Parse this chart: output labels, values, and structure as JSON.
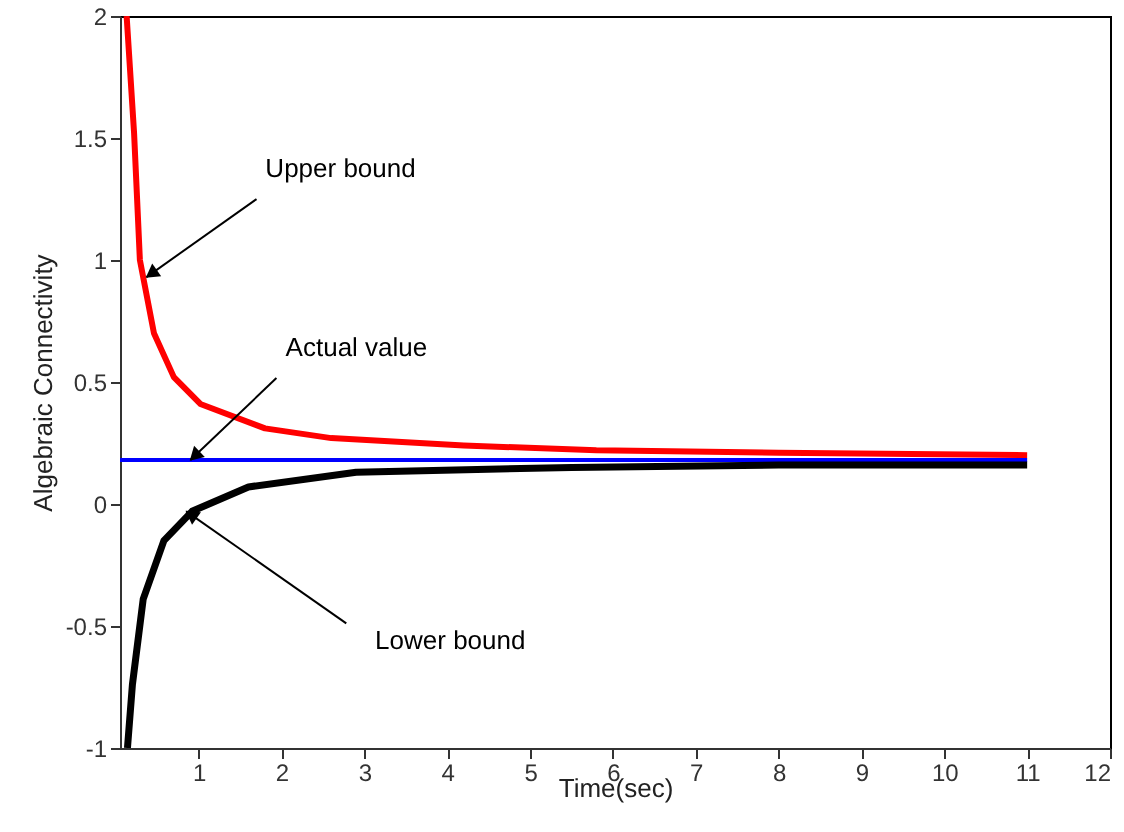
{
  "chart_data": {
    "type": "line",
    "xlabel": "Time(sec)",
    "ylabel": "Algebraic Connectivity",
    "xlim": [
      0.05,
      12
    ],
    "xticks": [
      1,
      2,
      3,
      4,
      5,
      6,
      7,
      8,
      9,
      10,
      11,
      12
    ],
    "ylim": [
      -1,
      2
    ],
    "yticks": [
      -1,
      -0.5,
      0,
      0.5,
      1,
      1.5,
      2
    ],
    "grid": false,
    "line_style": "solid",
    "marker": "none",
    "series": [
      {
        "color": "#ff0000",
        "x": [
          0.13,
          0.22,
          0.29,
          0.46,
          0.7,
          1.02,
          1.8,
          2.6,
          4.2,
          5.8,
          8,
          11
        ],
        "values": [
          2.0,
          1.52,
          1.0,
          0.7,
          0.52,
          0.41,
          0.31,
          0.27,
          0.24,
          0.22,
          0.21,
          0.2
        ]
      },
      {
        "color": "#0000ff",
        "x": [
          0.05,
          11
        ],
        "values": [
          0.18,
          0.18
        ]
      },
      {
        "color": "#000000",
        "x": [
          0.14,
          0.2,
          0.33,
          0.58,
          0.92,
          1.6,
          2.9,
          5.5,
          8,
          11
        ],
        "values": [
          -1.0,
          -0.74,
          -0.39,
          -0.15,
          -0.03,
          0.07,
          0.13,
          0.15,
          0.16,
          0.16
        ]
      }
    ],
    "annotations": [
      {
        "text": "Upper bound",
        "x": 0.37,
        "y": 0.93
      },
      {
        "text": "Actual value",
        "x": 0.9,
        "y": 0.18
      },
      {
        "text": "Lower bound",
        "x": 0.85,
        "y": -0.03
      }
    ]
  }
}
